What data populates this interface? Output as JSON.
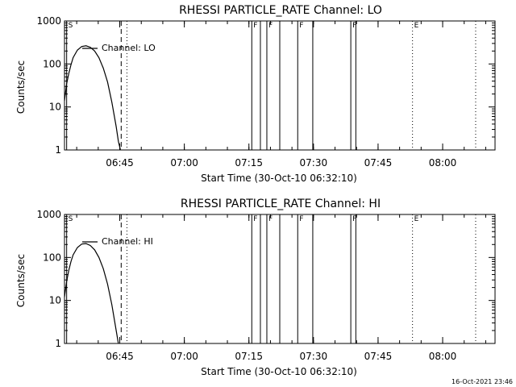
{
  "footer": {
    "timestamp": "16-Oct-2021 23:46"
  },
  "marker_labels": {
    "S": "S",
    "F": "F",
    "E": "E"
  },
  "chart_data": [
    {
      "type": "line",
      "title": "RHESSI PARTICLE_RATE Channel: LO",
      "xlabel": "Start Time (30-Oct-10 06:32:10)",
      "ylabel": "Counts/sec",
      "x_unit": "minutes after 06:32:10",
      "xlim": [
        "06:32:10",
        "08:12:10"
      ],
      "ylim": [
        1,
        1000
      ],
      "yscale": "log",
      "x_ticks": [
        "06:45",
        "07:00",
        "07:15",
        "07:30",
        "07:45",
        "08:00"
      ],
      "y_ticks": [
        "1",
        "10",
        "100",
        "1000"
      ],
      "legend": "Channel: LO",
      "series": [
        {
          "name": "Channel: LO",
          "x": [
            "06:32:10",
            "06:32:40",
            "06:33:10",
            "06:33:40",
            "06:34:10",
            "06:35:10",
            "06:36:10",
            "06:37:10",
            "06:38:10",
            "06:39:10",
            "06:40:10",
            "06:41:10",
            "06:42:10",
            "06:43:10",
            "06:44:10",
            "06:44:40",
            "06:45:10"
          ],
          "values": [
            14,
            35,
            60,
            95,
            140,
            210,
            255,
            265,
            245,
            200,
            140,
            80,
            38,
            13,
            3.5,
            1.6,
            1
          ]
        }
      ],
      "markers": [
        {
          "time": "06:32:40",
          "style": "solid",
          "label": "S"
        },
        {
          "time": "06:45:20",
          "style": "dashed",
          "label": ""
        },
        {
          "time": "06:46:40",
          "style": "dotted",
          "label": ""
        },
        {
          "time": "07:15:40",
          "style": "solid",
          "label": "F"
        },
        {
          "time": "07:17:40",
          "style": "solid",
          "label": ""
        },
        {
          "time": "07:19:10",
          "style": "solid",
          "label": "F"
        },
        {
          "time": "07:22:10",
          "style": "solid",
          "label": ""
        },
        {
          "time": "07:26:20",
          "style": "solid",
          "label": "F"
        },
        {
          "time": "07:29:50",
          "style": "solid",
          "label": ""
        },
        {
          "time": "07:38:40",
          "style": "solid",
          "label": "F"
        },
        {
          "time": "07:39:50",
          "style": "solid",
          "label": ""
        },
        {
          "time": "07:53:00",
          "style": "dotted",
          "label": "E"
        },
        {
          "time": "08:07:40",
          "style": "dotted",
          "label": ""
        }
      ]
    },
    {
      "type": "line",
      "title": "RHESSI PARTICLE_RATE Channel: HI",
      "xlabel": "Start Time (30-Oct-10 06:32:10)",
      "ylabel": "Counts/sec",
      "x_unit": "minutes after 06:32:10",
      "xlim": [
        "06:32:10",
        "08:12:10"
      ],
      "ylim": [
        1,
        1000
      ],
      "yscale": "log",
      "x_ticks": [
        "06:45",
        "07:00",
        "07:15",
        "07:30",
        "07:45",
        "08:00"
      ],
      "y_ticks": [
        "1",
        "10",
        "100",
        "1000"
      ],
      "legend": "Channel: HI",
      "series": [
        {
          "name": "Channel: HI",
          "x": [
            "06:32:10",
            "06:32:40",
            "06:33:10",
            "06:33:40",
            "06:34:10",
            "06:35:10",
            "06:36:10",
            "06:37:10",
            "06:38:10",
            "06:39:10",
            "06:40:10",
            "06:41:10",
            "06:42:10",
            "06:43:10",
            "06:44:10",
            "06:44:40"
          ],
          "values": [
            12,
            28,
            50,
            80,
            115,
            170,
            205,
            210,
            190,
            150,
            100,
            55,
            24,
            8,
            2,
            1
          ]
        }
      ],
      "markers": [
        {
          "time": "06:32:40",
          "style": "solid",
          "label": "S"
        },
        {
          "time": "06:45:20",
          "style": "dashed",
          "label": ""
        },
        {
          "time": "06:46:40",
          "style": "dotted",
          "label": ""
        },
        {
          "time": "07:15:40",
          "style": "solid",
          "label": "F"
        },
        {
          "time": "07:17:40",
          "style": "solid",
          "label": ""
        },
        {
          "time": "07:19:10",
          "style": "solid",
          "label": "F"
        },
        {
          "time": "07:22:10",
          "style": "solid",
          "label": ""
        },
        {
          "time": "07:26:20",
          "style": "solid",
          "label": "F"
        },
        {
          "time": "07:29:50",
          "style": "solid",
          "label": ""
        },
        {
          "time": "07:38:40",
          "style": "solid",
          "label": "F"
        },
        {
          "time": "07:39:50",
          "style": "solid",
          "label": ""
        },
        {
          "time": "07:53:00",
          "style": "dotted",
          "label": "E"
        },
        {
          "time": "08:07:40",
          "style": "dotted",
          "label": ""
        }
      ]
    }
  ]
}
